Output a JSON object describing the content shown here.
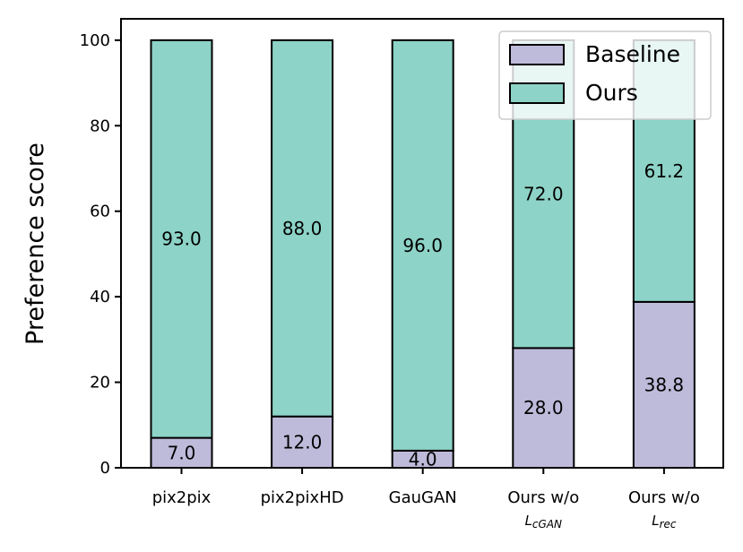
{
  "chart_data": {
    "type": "bar",
    "stacked": true,
    "title": "",
    "xlabel": "",
    "ylabel": "Preference score",
    "ylim": [
      0,
      105
    ],
    "yticks": [
      0,
      20,
      40,
      60,
      80,
      100
    ],
    "categories": [
      {
        "label": "pix2pix",
        "sub": "",
        "sub_script": ""
      },
      {
        "label": "pix2pixHD",
        "sub": "",
        "sub_script": ""
      },
      {
        "label": "GauGAN",
        "sub": "",
        "sub_script": ""
      },
      {
        "label": "Ours w/o",
        "sub": "L",
        "sub_script": "cGAN"
      },
      {
        "label": "Ours w/o",
        "sub": "L",
        "sub_script": "rec"
      }
    ],
    "series": [
      {
        "name": "Baseline",
        "color": "#bebada",
        "values": [
          7.0,
          12.0,
          4.0,
          28.0,
          38.8
        ],
        "labels": [
          "7.0",
          "12.0",
          "4.0",
          "28.0",
          "38.8"
        ]
      },
      {
        "name": "Ours",
        "color": "#8dd3c7",
        "values": [
          93.0,
          88.0,
          96.0,
          72.0,
          61.2
        ],
        "labels": [
          "93.0",
          "88.0",
          "96.0",
          "72.0",
          "61.2"
        ]
      }
    ],
    "legend": {
      "position": "top-right",
      "entries": [
        "Baseline",
        "Ours"
      ]
    },
    "grid": false
  }
}
